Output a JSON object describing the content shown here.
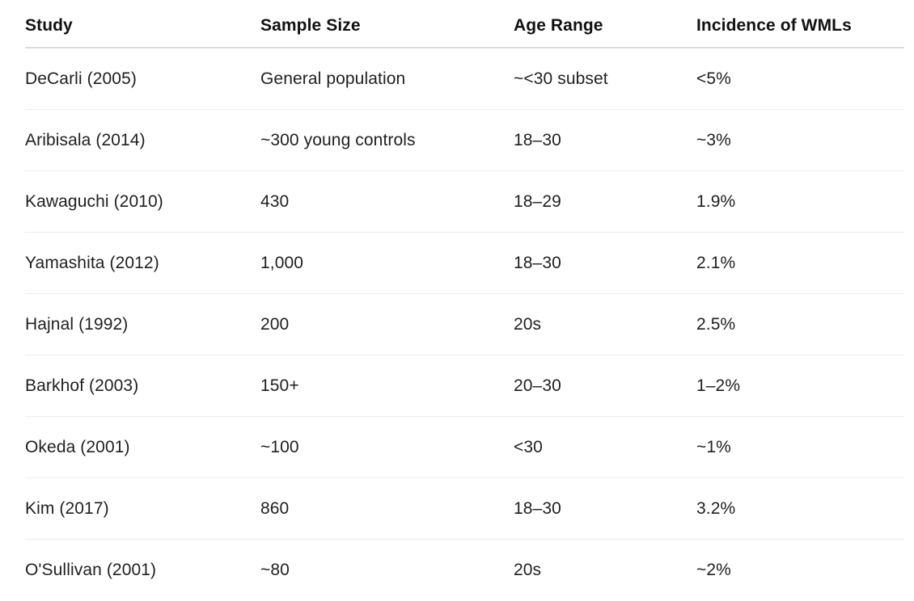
{
  "table": {
    "headers": [
      "Study",
      "Sample Size",
      "Age Range",
      "Incidence of WMLs"
    ],
    "rows": [
      [
        "DeCarli (2005)",
        "General population",
        "~<30 subset",
        "<5%"
      ],
      [
        "Aribisala (2014)",
        "~300 young controls",
        "18–30",
        "~3%"
      ],
      [
        "Kawaguchi (2010)",
        "430",
        "18–29",
        "1.9%"
      ],
      [
        "Yamashita (2012)",
        "1,000",
        "18–30",
        "2.1%"
      ],
      [
        "Hajnal (1992)",
        "200",
        "20s",
        "2.5%"
      ],
      [
        "Barkhof (2003)",
        "150+",
        "20–30",
        "1–2%"
      ],
      [
        "Okeda (2001)",
        "~100",
        "<30",
        "~1%"
      ],
      [
        "Kim (2017)",
        "860",
        "18–30",
        "3.2%"
      ],
      [
        "O'Sullivan (2001)",
        "~80",
        "20s",
        "~2%"
      ]
    ]
  }
}
